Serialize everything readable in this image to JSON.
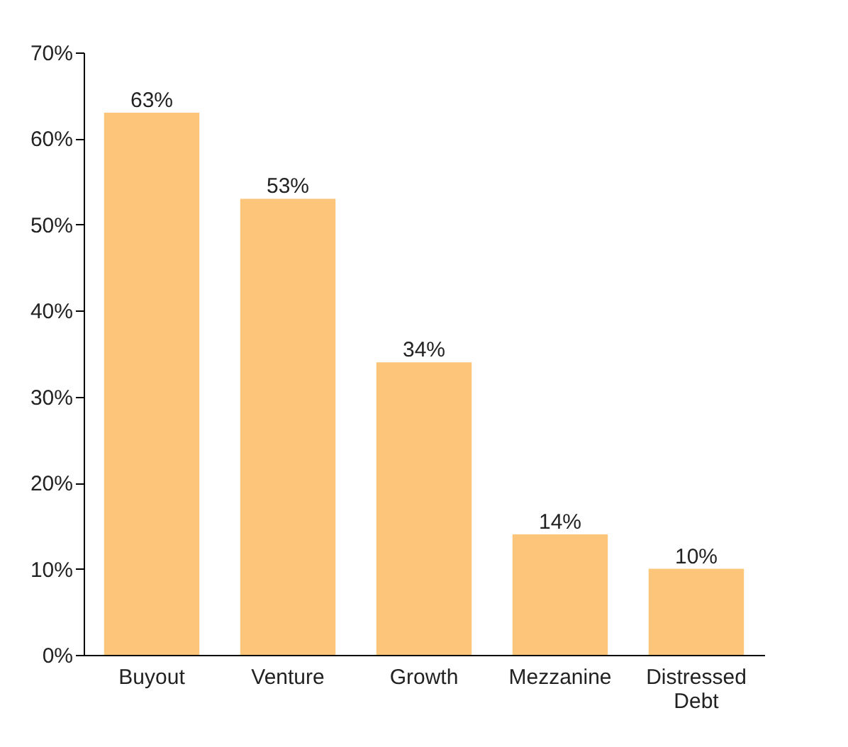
{
  "chart_data": {
    "type": "bar",
    "categories": [
      "Buyout",
      "Venture",
      "Growth",
      "Mezzanine",
      "Distressed Debt"
    ],
    "values": [
      63,
      53,
      34,
      14,
      10
    ],
    "value_labels": [
      "63%",
      "53%",
      "34%",
      "14%",
      "10%"
    ],
    "color": "#fdc57a",
    "ylim": [
      0,
      70
    ],
    "yticks": [
      {
        "value": 0,
        "label": "0%"
      },
      {
        "value": 10,
        "label": "10%"
      },
      {
        "value": 20,
        "label": "20%"
      },
      {
        "value": 30,
        "label": "30%"
      },
      {
        "value": 40,
        "label": "40%"
      },
      {
        "value": 50,
        "label": "50%"
      },
      {
        "value": 60,
        "label": "60%"
      },
      {
        "value": 70,
        "label": "70%"
      }
    ],
    "grid": false
  }
}
